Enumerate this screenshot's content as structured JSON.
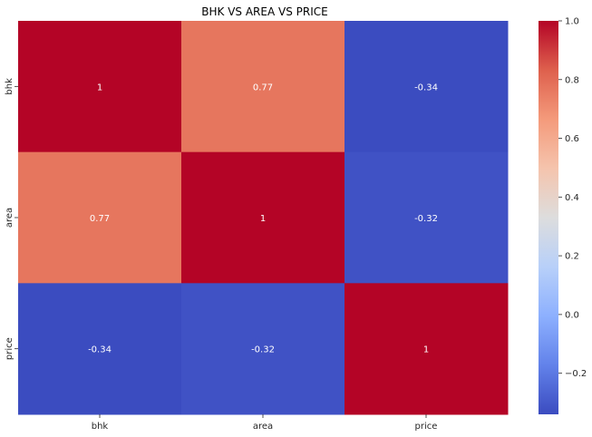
{
  "chart_data": {
    "type": "heatmap",
    "title": "BHK VS AREA VS PRICE",
    "x_categories": [
      "bhk",
      "area",
      "price"
    ],
    "y_categories": [
      "bhk",
      "area",
      "price"
    ],
    "values": [
      [
        1,
        0.77,
        -0.34
      ],
      [
        0.77,
        1,
        -0.32
      ],
      [
        -0.34,
        -0.32,
        1
      ]
    ],
    "annotations": [
      [
        "1",
        "0.77",
        "-0.34"
      ],
      [
        "0.77",
        "1",
        "-0.32"
      ],
      [
        "-0.34",
        "-0.32",
        "1"
      ]
    ],
    "colormap": "coolwarm",
    "colorbar": {
      "range": [
        -0.34,
        1.0
      ],
      "ticks": [
        1.0,
        0.8,
        0.6,
        0.4,
        0.2,
        0.0,
        -0.2
      ],
      "tick_labels": [
        "1.0",
        "0.8",
        "0.6",
        "0.4",
        "0.2",
        "0.0",
        "−0.2"
      ]
    },
    "colors": {
      "low": "#3b4cc0",
      "mid": "#dddddd",
      "high": "#b40426"
    },
    "grid": false
  }
}
